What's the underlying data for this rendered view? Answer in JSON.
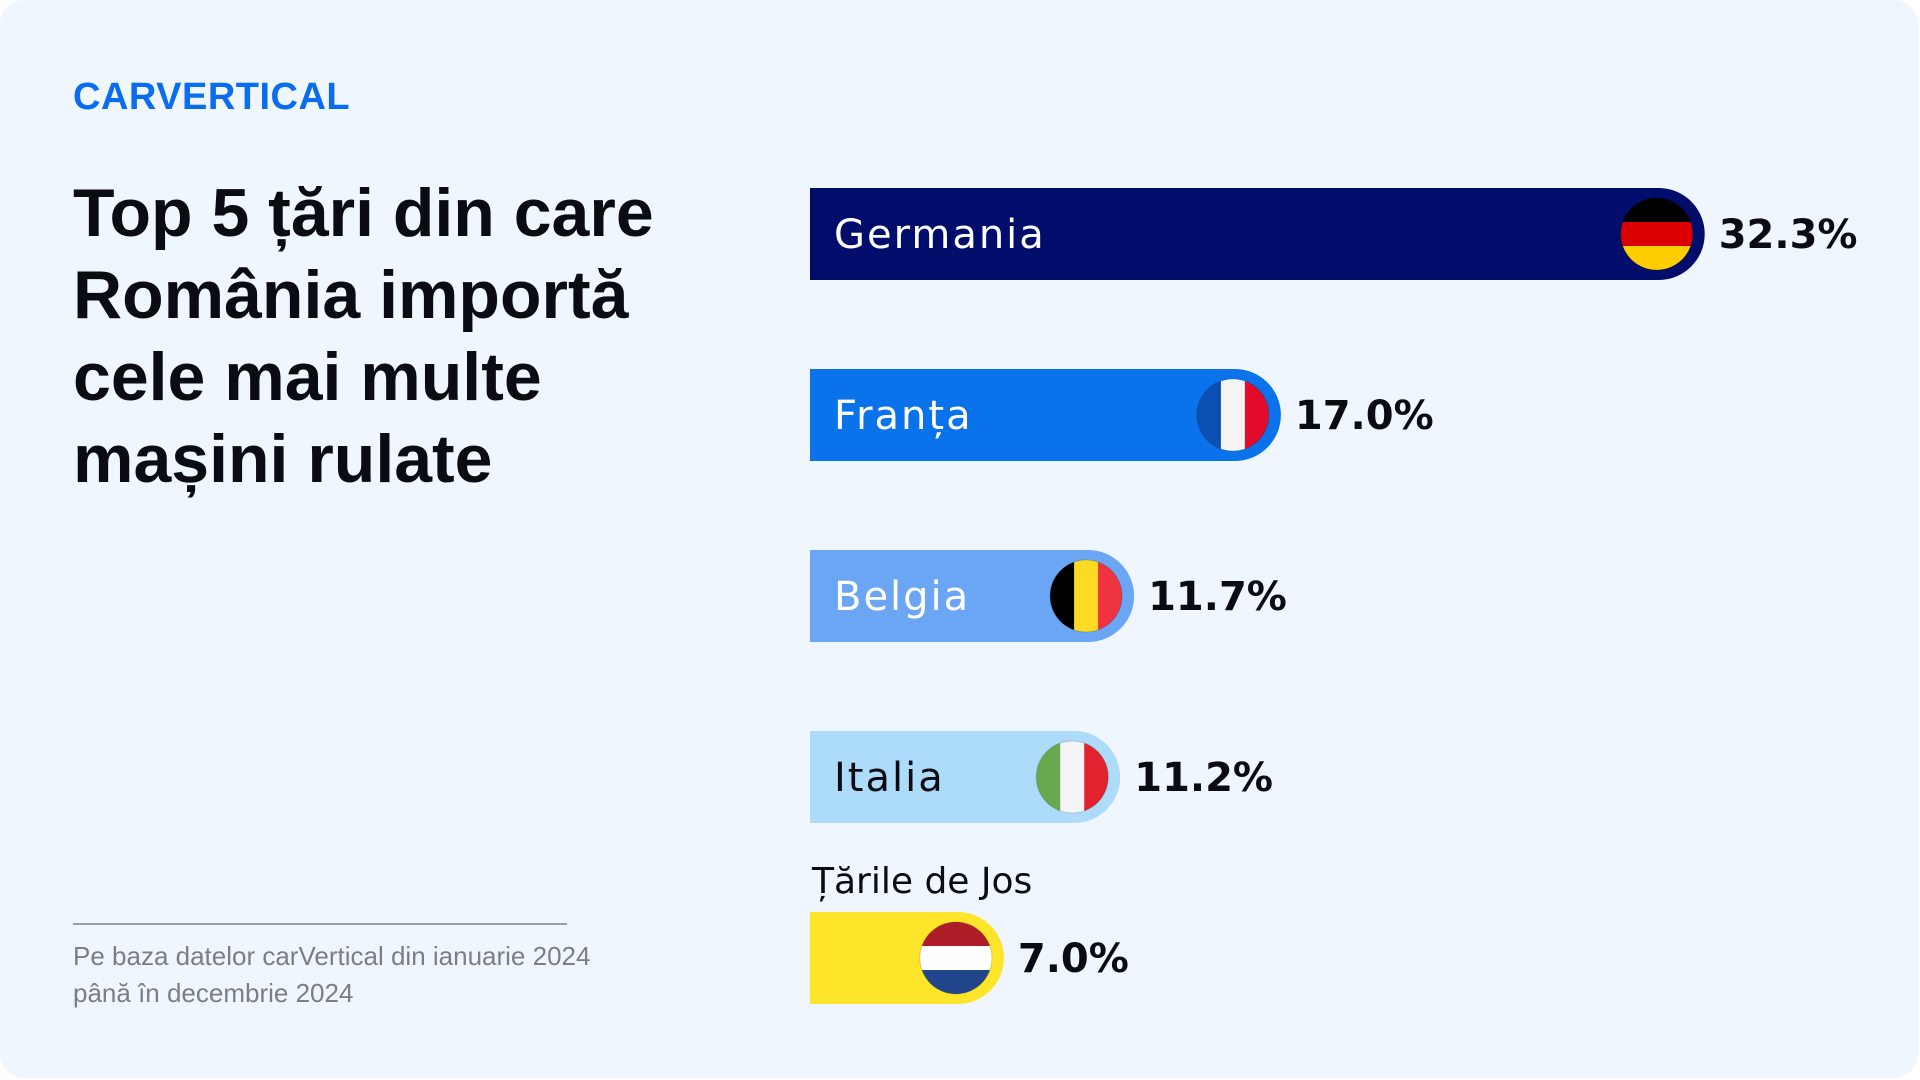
{
  "brand": {
    "logo_text": "CARVERTICAL"
  },
  "title": "Top 5 țări din care România importă cele mai multe mașini rulate",
  "source_note": "Pe baza datelor carVertical din ianuarie 2024 până în decembrie 2024",
  "colors": {
    "background": "#eff6fd",
    "accent": "#0a6cf0"
  },
  "chart_data": {
    "type": "bar",
    "orientation": "horizontal",
    "categories": [
      "Germania",
      "Franța",
      "Belgia",
      "Italia",
      "Țările de Jos"
    ],
    "values": [
      32.3,
      17.0,
      11.7,
      11.2,
      7.0
    ],
    "value_labels": [
      "32.3%",
      "17.0%",
      "11.7%",
      "11.2%",
      "7.0%"
    ],
    "unit": "%",
    "bar_colors": [
      "#000d6b",
      "#0a72ea",
      "#6aa6f4",
      "#addcfb",
      "#fee52a"
    ],
    "label_colors": [
      "#ffffff",
      "#ffffff",
      "#ffffff",
      "#0b0b12",
      "#0b0b12"
    ],
    "flags": [
      {
        "icon": "germany-flag-icon",
        "stripes": "horizontal",
        "colors": [
          "#000000",
          "#dd0000",
          "#ffce00"
        ]
      },
      {
        "icon": "france-flag-icon",
        "stripes": "vertical",
        "colors": [
          "#0b4fb3",
          "#f4f4f4",
          "#e30b2a"
        ]
      },
      {
        "icon": "belgium-flag-icon",
        "stripes": "vertical",
        "colors": [
          "#000000",
          "#fdda24",
          "#ef3340"
        ]
      },
      {
        "icon": "italy-flag-icon",
        "stripes": "vertical",
        "colors": [
          "#6aa84f",
          "#f4f4f4",
          "#e2222e"
        ]
      },
      {
        "icon": "netherlands-flag-icon",
        "stripes": "horizontal",
        "colors": [
          "#ae1c28",
          "#ffffff",
          "#21468b"
        ]
      }
    ],
    "grid": false,
    "legend": "none"
  }
}
